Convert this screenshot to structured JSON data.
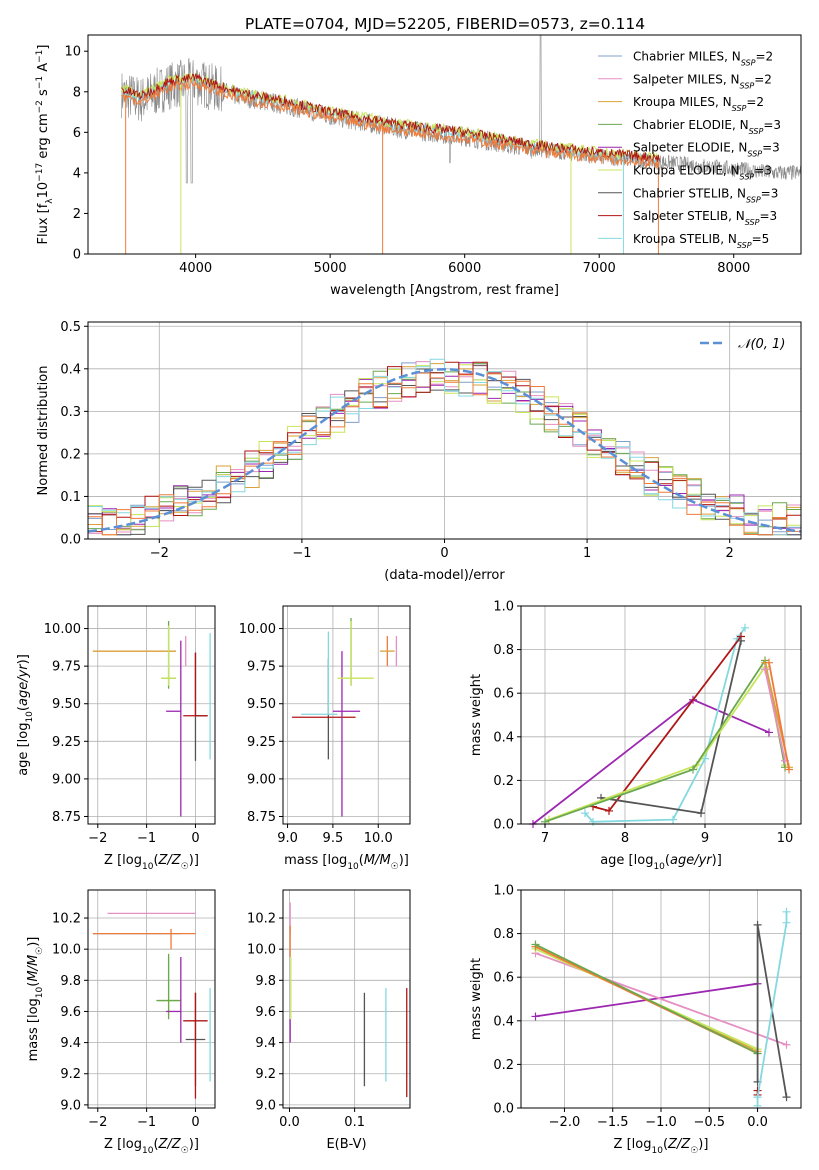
{
  "figure_title": "PLATE=0704, MJD=52205, FIBERID=0573, z=0.114",
  "colors": {
    "Chabrier MILES": "#7f9fce",
    "Salpeter MILES": "#e68fc3",
    "Kroupa MILES": "#d9a23a",
    "Chabrier ELODIE": "#6aa84f",
    "Salpeter ELODIE": "#9c27b0",
    "Kroupa ELODIE": "#c7e55a",
    "Chabrier STELIB": "#555555",
    "Salpeter STELIB": "#b01515",
    "Kroupa STELIB": "#84d8e0",
    "orange": "#ef7b3a",
    "gaussian": "#5b8fd6",
    "data": "#888888"
  },
  "chart_data": [
    {
      "id": "spectrum",
      "type": "line",
      "xlabel": "wavelength [Angstrom, rest frame]",
      "ylabel_parts": [
        "Flux [f",
        "λ",
        "10",
        "−17",
        " erg cm",
        "−2",
        " s",
        "−1",
        " A",
        "−1",
        "]"
      ],
      "xlim": [
        3200,
        8500
      ],
      "ylim": [
        0,
        10.8
      ],
      "xticks": [
        4000,
        5000,
        6000,
        7000,
        8000
      ],
      "yticks": [
        0,
        2,
        4,
        6,
        8,
        10
      ],
      "legend": [
        {
          "name": "Chabrier MILES",
          "nssp": "2"
        },
        {
          "name": "Salpeter MILES",
          "nssp": "2"
        },
        {
          "name": "Kroupa MILES",
          "nssp": "2"
        },
        {
          "name": "Chabrier ELODIE",
          "nssp": "3"
        },
        {
          "name": "Salpeter ELODIE",
          "nssp": "3"
        },
        {
          "name": "Kroupa ELODIE",
          "nssp": "3"
        },
        {
          "name": "Chabrier STELIB",
          "nssp": "3"
        },
        {
          "name": "Salpeter STELIB",
          "nssp": "3"
        },
        {
          "name": "Kroupa STELIB",
          "nssp": "5"
        }
      ],
      "legend_position": "top-right",
      "continuum": [
        [
          3450,
          7.9
        ],
        [
          3600,
          7.6
        ],
        [
          3800,
          8.3
        ],
        [
          4000,
          8.5
        ],
        [
          4300,
          7.8
        ],
        [
          4700,
          7.3
        ],
        [
          5000,
          6.8
        ],
        [
          5500,
          6.2
        ],
        [
          6000,
          5.8
        ],
        [
          6500,
          5.2
        ],
        [
          7000,
          4.8
        ],
        [
          7500,
          4.5
        ],
        [
          8000,
          4.2
        ],
        [
          8300,
          4.0
        ]
      ],
      "model_range": [
        3450,
        7450
      ],
      "data_range": [
        3450,
        8500
      ]
    },
    {
      "id": "residuals",
      "type": "step",
      "xlabel": "(data-model)/error",
      "ylabel": "Normed distribution",
      "xlim": [
        -2.5,
        2.5
      ],
      "ylim": [
        0,
        0.51
      ],
      "xticks": [
        -2,
        -1,
        0,
        1,
        2
      ],
      "yticks": [
        0.0,
        0.1,
        0.2,
        0.3,
        0.4,
        0.5
      ],
      "legend": [
        {
          "name": "𝒩(0, 1)"
        }
      ],
      "legend_position": "top-right",
      "grid": true
    },
    {
      "id": "age_vs_Z",
      "type": "errorbar",
      "xlabel": "Z [log10(Z/Z☉)]",
      "ylabel": "age  [log10(age/yr)]",
      "xlim": [
        -2.2,
        0.4
      ],
      "ylim": [
        8.7,
        10.15
      ],
      "xticks": [
        -2,
        -1,
        0
      ],
      "yticks": [
        8.75,
        9.0,
        9.25,
        9.5,
        9.75,
        10.0
      ],
      "grid": true,
      "points": [
        {
          "c": "orange",
          "x": -1.2,
          "xerr": [
            0.9,
            0.8
          ],
          "y": 9.85,
          "yerr": [
            0.0,
            0.0
          ]
        },
        {
          "c": "Kroupa MILES",
          "x": -1.2,
          "xerr": [
            0.9,
            0.8
          ],
          "y": 9.85,
          "yerr": [
            0.0,
            0.0
          ]
        },
        {
          "c": "Chabrier ELODIE",
          "x": -0.55,
          "xerr": [
            0.15,
            0.15
          ],
          "y": 9.67,
          "yerr": [
            0.07,
            0.38
          ]
        },
        {
          "c": "Kroupa ELODIE",
          "x": -0.55,
          "xerr": [
            0.15,
            0.15
          ],
          "y": 9.67,
          "yerr": [
            0.05,
            0.35
          ]
        },
        {
          "c": "Salpeter ELODIE",
          "x": -0.3,
          "xerr": [
            0.3,
            0.0
          ],
          "y": 9.45,
          "yerr": [
            0.7,
            0.47
          ]
        },
        {
          "c": "Salpeter MILES",
          "x": -0.2,
          "xerr": [
            0.0,
            0.0
          ],
          "y": 9.85,
          "yerr": [
            0.1,
            0.1
          ]
        },
        {
          "c": "Chabrier STELIB",
          "x": 0.0,
          "xerr": [
            0.0,
            0.25
          ],
          "y": 9.42,
          "yerr": [
            0.3,
            0.42
          ]
        },
        {
          "c": "Salpeter STELIB",
          "x": 0.0,
          "xerr": [
            0.25,
            0.25
          ],
          "y": 9.42,
          "yerr": [
            0.0,
            0.42
          ]
        },
        {
          "c": "Kroupa STELIB",
          "x": 0.3,
          "xerr": [
            0.0,
            0.0
          ],
          "y": 9.55,
          "yerr": [
            0.42,
            0.42
          ]
        }
      ]
    },
    {
      "id": "age_vs_mass",
      "type": "errorbar",
      "xlabel": "mass [log10(M/M☉)]",
      "ylabel": "",
      "xlim": [
        8.95,
        10.35
      ],
      "ylim": [
        8.7,
        10.15
      ],
      "xticks": [
        9.0,
        9.5,
        10.0
      ],
      "yticks": [
        8.75,
        9.0,
        9.25,
        9.5,
        9.75,
        10.0
      ],
      "grid": true,
      "points": [
        {
          "c": "Chabrier STELIB",
          "x": 9.45,
          "xerr": [
            0.0,
            0.0
          ],
          "y": 9.45,
          "yerr": [
            0.32,
            0.35
          ]
        },
        {
          "c": "Salpeter STELIB",
          "x": 9.4,
          "xerr": [
            0.35,
            0.35
          ],
          "y": 9.41,
          "yerr": [
            0.0,
            0.0
          ]
        },
        {
          "c": "Kroupa STELIB",
          "x": 9.45,
          "xerr": [
            0.3,
            0.1
          ],
          "y": 9.43,
          "yerr": [
            0.0,
            0.55
          ]
        },
        {
          "c": "Salpeter ELODIE",
          "x": 9.6,
          "xerr": [
            0.1,
            0.2
          ],
          "y": 9.45,
          "yerr": [
            0.7,
            0.4
          ]
        },
        {
          "c": "Chabrier ELODIE",
          "x": 9.7,
          "xerr": [
            0.0,
            0.0
          ],
          "y": 9.67,
          "yerr": [
            0.05,
            0.4
          ]
        },
        {
          "c": "Kroupa ELODIE",
          "x": 9.7,
          "xerr": [
            0.15,
            0.25
          ],
          "y": 9.67,
          "yerr": [
            0.05,
            0.38
          ]
        },
        {
          "c": "orange",
          "x": 10.1,
          "xerr": [
            0.0,
            0.0
          ],
          "y": 9.85,
          "yerr": [
            0.1,
            0.1
          ]
        },
        {
          "c": "Kroupa MILES",
          "x": 10.1,
          "xerr": [
            0.08,
            0.08
          ],
          "y": 9.85,
          "yerr": [
            0.0,
            0.0
          ]
        },
        {
          "c": "Salpeter MILES",
          "x": 10.2,
          "xerr": [
            0.0,
            0.0
          ],
          "y": 9.85,
          "yerr": [
            0.1,
            0.1
          ]
        }
      ]
    },
    {
      "id": "mass_weight_vs_age",
      "type": "line",
      "xlabel": "age  [log10(age/yr)]",
      "ylabel": "mass weight",
      "xlim": [
        6.7,
        10.2
      ],
      "ylim": [
        0,
        1.0
      ],
      "xticks": [
        7,
        8,
        9,
        10
      ],
      "yticks": [
        0.0,
        0.2,
        0.4,
        0.6,
        0.8,
        1.0
      ],
      "grid": true,
      "series": [
        {
          "c": "Salpeter ELODIE",
          "x": [
            6.85,
            8.85,
            9.8
          ],
          "y": [
            0.0,
            0.57,
            0.42
          ]
        },
        {
          "c": "Kroupa STELIB",
          "x": [
            7.5,
            7.6,
            8.6,
            9.0,
            9.4,
            9.5
          ],
          "y": [
            0.05,
            0.01,
            0.02,
            0.3,
            0.85,
            0.9
          ]
        },
        {
          "c": "Salpeter STELIB",
          "x": [
            7.6,
            7.8,
            9.45
          ],
          "y": [
            0.08,
            0.06,
            0.86
          ]
        },
        {
          "c": "Chabrier STELIB",
          "x": [
            7.7,
            8.95,
            9.45
          ],
          "y": [
            0.12,
            0.05,
            0.84
          ]
        },
        {
          "c": "Kroupa ELODIE",
          "x": [
            7.05,
            8.9,
            9.75,
            10.0
          ],
          "y": [
            0.02,
            0.27,
            0.72,
            0.27
          ]
        },
        {
          "c": "Chabrier ELODIE",
          "x": [
            7.0,
            8.85,
            9.75,
            10.0
          ],
          "y": [
            0.01,
            0.25,
            0.75,
            0.26
          ]
        },
        {
          "c": "Kroupa MILES",
          "x": [
            9.75,
            10.05
          ],
          "y": [
            0.74,
            0.26
          ]
        },
        {
          "c": "Salpeter MILES",
          "x": [
            9.75,
            10.0
          ],
          "y": [
            0.71,
            0.29
          ]
        },
        {
          "c": "orange",
          "x": [
            9.8,
            10.05
          ],
          "y": [
            0.74,
            0.25
          ]
        }
      ]
    },
    {
      "id": "mass_vs_Z",
      "type": "errorbar",
      "xlabel": "Z [log10(Z/Z☉)]",
      "ylabel": "mass [log10(M/M☉)]",
      "xlim": [
        -2.2,
        0.4
      ],
      "ylim": [
        8.98,
        10.38
      ],
      "xticks": [
        -2,
        -1,
        0
      ],
      "yticks": [
        9.0,
        9.2,
        9.4,
        9.6,
        9.8,
        10.0,
        10.2
      ],
      "grid": true,
      "points": [
        {
          "c": "Salpeter MILES",
          "x": -0.5,
          "xerr": [
            1.3,
            0.5
          ],
          "y": 10.23,
          "yerr": [
            0.0,
            0.0
          ]
        },
        {
          "c": "Chabrier MILES",
          "x": -1.2,
          "xerr": [
            0.9,
            0.9
          ],
          "y": 10.1,
          "yerr": [
            0.0,
            0.0
          ]
        },
        {
          "c": "orange",
          "x": -0.5,
          "xerr": [
            1.6,
            0.5
          ],
          "y": 10.1,
          "yerr": [
            0.1,
            0.03
          ]
        },
        {
          "c": "Kroupa ELODIE",
          "x": -0.55,
          "xerr": [
            0.2,
            0.2
          ],
          "y": 9.67,
          "yerr": [
            0.1,
            0.28
          ]
        },
        {
          "c": "Chabrier ELODIE",
          "x": -0.55,
          "xerr": [
            0.25,
            0.25
          ],
          "y": 9.67,
          "yerr": [
            0.12,
            0.3
          ]
        },
        {
          "c": "Salpeter ELODIE",
          "x": -0.3,
          "xerr": [
            0.3,
            0.0
          ],
          "y": 9.6,
          "yerr": [
            0.2,
            0.35
          ]
        },
        {
          "c": "Chabrier STELIB",
          "x": 0.0,
          "xerr": [
            0.2,
            0.2
          ],
          "y": 9.42,
          "yerr": [
            0.3,
            0.3
          ]
        },
        {
          "c": "Salpeter STELIB",
          "x": 0.0,
          "xerr": [
            0.25,
            0.25
          ],
          "y": 9.54,
          "yerr": [
            0.5,
            0.18
          ]
        },
        {
          "c": "Kroupa STELIB",
          "x": 0.3,
          "xerr": [
            0.0,
            0.0
          ],
          "y": 9.45,
          "yerr": [
            0.3,
            0.3
          ]
        }
      ]
    },
    {
      "id": "mass_vs_ebv",
      "type": "errorbar",
      "xlabel": "E(B-V)",
      "ylabel": "",
      "xlim": [
        -0.01,
        0.185
      ],
      "ylim": [
        8.98,
        10.38
      ],
      "xticks": [
        0.0,
        0.1
      ],
      "yticks": [
        9.0,
        9.2,
        9.4,
        9.6,
        9.8,
        10.0,
        10.2
      ],
      "grid": true,
      "points": [
        {
          "c": "Salpeter MILES",
          "x": 0.001,
          "xerr": [
            0,
            0
          ],
          "y": 10.2,
          "yerr": [
            0.1,
            0.1
          ]
        },
        {
          "c": "orange",
          "x": 0.001,
          "xerr": [
            0,
            0
          ],
          "y": 10.05,
          "yerr": [
            0.1,
            0.1
          ]
        },
        {
          "c": "Kroupa ELODIE",
          "x": 0.002,
          "xerr": [
            0,
            0
          ],
          "y": 9.7,
          "yerr": [
            0.15,
            0.25
          ]
        },
        {
          "c": "Salpeter ELODIE",
          "x": 0.001,
          "xerr": [
            0,
            0
          ],
          "y": 9.5,
          "yerr": [
            0.1,
            0.05
          ]
        },
        {
          "c": "Chabrier STELIB",
          "x": 0.115,
          "xerr": [
            0,
            0
          ],
          "y": 9.42,
          "yerr": [
            0.3,
            0.3
          ]
        },
        {
          "c": "Kroupa STELIB",
          "x": 0.148,
          "xerr": [
            0,
            0
          ],
          "y": 9.45,
          "yerr": [
            0.3,
            0.3
          ]
        },
        {
          "c": "Salpeter STELIB",
          "x": 0.18,
          "xerr": [
            0,
            0
          ],
          "y": 9.4,
          "yerr": [
            0.35,
            0.35
          ]
        }
      ]
    },
    {
      "id": "mass_weight_vs_Z",
      "type": "line",
      "xlabel": "Z [log10(Z/Z☉)]",
      "ylabel": "mass weight",
      "xlim": [
        -2.45,
        0.45
      ],
      "ylim": [
        0,
        1.0
      ],
      "xticks": [
        -2.0,
        -1.5,
        -1.0,
        -0.5,
        0.0
      ],
      "yticks": [
        0.0,
        0.2,
        0.4,
        0.6,
        0.8,
        1.0
      ],
      "grid": true,
      "series": [
        {
          "c": "Salpeter ELODIE",
          "x": [
            -2.3,
            0.0
          ],
          "y": [
            0.42,
            0.57
          ]
        },
        {
          "c": "Salpeter MILES",
          "x": [
            -2.3,
            0.3
          ],
          "y": [
            0.71,
            0.29
          ]
        },
        {
          "c": "Kroupa MILES",
          "x": [
            -2.3,
            0.0
          ],
          "y": [
            0.74,
            0.26
          ]
        },
        {
          "c": "Kroupa ELODIE",
          "x": [
            -2.3,
            0.0
          ],
          "y": [
            0.73,
            0.27
          ]
        },
        {
          "c": "orange",
          "x": [
            -2.3,
            0.0
          ],
          "y": [
            0.74,
            0.25
          ]
        },
        {
          "c": "Chabrier ELODIE",
          "x": [
            -2.3,
            0.0
          ],
          "y": [
            0.75,
            0.25
          ]
        },
        {
          "c": "Chabrier STELIB",
          "x": [
            0.0,
            0.0,
            0.3
          ],
          "y": [
            0.12,
            0.84,
            0.05
          ]
        },
        {
          "c": "Salpeter STELIB",
          "x": [
            0.0,
            0.0
          ],
          "y": [
            0.06,
            0.08
          ]
        },
        {
          "c": "Kroupa STELIB",
          "x": [
            0.0,
            0.0,
            0.3,
            0.3
          ],
          "y": [
            0.01,
            0.05,
            0.85,
            0.9
          ]
        }
      ]
    }
  ]
}
